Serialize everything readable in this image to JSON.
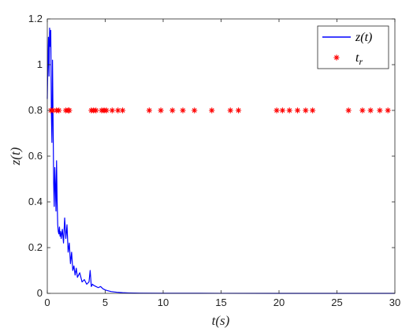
{
  "chart_data": {
    "type": "line",
    "title": "",
    "xlabel": "t(s)",
    "ylabel": "z(t)",
    "xlim": [
      0,
      30
    ],
    "ylim": [
      0,
      1.2
    ],
    "xticks": [
      0,
      5,
      10,
      15,
      20,
      25,
      30
    ],
    "yticks": [
      0,
      0.2,
      0.4,
      0.6,
      0.8,
      1,
      1.2
    ],
    "xtick_labels": [
      "0",
      "5",
      "10",
      "15",
      "20",
      "25",
      "30"
    ],
    "ytick_labels": [
      "0",
      "0.2",
      "0.4",
      "0.6",
      "0.8",
      "1",
      "1.2"
    ],
    "grid": false,
    "legend_position": "top-right",
    "series": [
      {
        "name": "z(t)",
        "kind": "line",
        "color": "#0000ff",
        "x": [
          0,
          0.05,
          0.1,
          0.15,
          0.2,
          0.25,
          0.3,
          0.35,
          0.4,
          0.45,
          0.5,
          0.55,
          0.6,
          0.65,
          0.7,
          0.75,
          0.8,
          0.85,
          0.9,
          0.95,
          1.0,
          1.05,
          1.1,
          1.15,
          1.2,
          1.3,
          1.4,
          1.5,
          1.6,
          1.7,
          1.8,
          1.9,
          2.0,
          2.1,
          2.2,
          2.3,
          2.4,
          2.5,
          2.6,
          2.8,
          3.0,
          3.2,
          3.4,
          3.6,
          3.7,
          3.8,
          3.9,
          4.0,
          4.2,
          4.4,
          4.6,
          4.8,
          5.0,
          5.2,
          5.5,
          6.0,
          6.5,
          7.0,
          8.0,
          10.0,
          15.0,
          20.0,
          25.0,
          30.0
        ],
        "y": [
          0.85,
          1.0,
          1.12,
          0.95,
          1.16,
          1.08,
          1.15,
          0.8,
          0.66,
          1.02,
          0.75,
          0.48,
          0.38,
          0.55,
          0.47,
          0.36,
          0.58,
          0.4,
          0.3,
          0.27,
          0.26,
          0.29,
          0.25,
          0.27,
          0.24,
          0.28,
          0.22,
          0.33,
          0.24,
          0.3,
          0.18,
          0.22,
          0.13,
          0.18,
          0.1,
          0.12,
          0.08,
          0.11,
          0.07,
          0.09,
          0.05,
          0.06,
          0.04,
          0.05,
          0.1,
          0.03,
          0.04,
          0.035,
          0.03,
          0.025,
          0.03,
          0.02,
          0.015,
          0.012,
          0.008,
          0.005,
          0.003,
          0.002,
          0.001,
          0.0005,
          0.0002,
          0.0001,
          0.0,
          0.0
        ]
      },
      {
        "name": "t_r",
        "kind": "scatter",
        "marker": "*",
        "color": "#ff0000",
        "x": [
          0.3,
          0.5,
          0.8,
          1.0,
          1.6,
          1.8,
          1.9,
          3.8,
          4.0,
          4.2,
          4.7,
          4.9,
          5.1,
          5.6,
          6.1,
          6.5,
          8.8,
          9.8,
          10.8,
          11.7,
          12.7,
          14.2,
          15.8,
          16.5,
          19.8,
          20.3,
          20.9,
          21.6,
          22.3,
          22.9,
          26.0,
          27.2,
          27.9,
          28.7,
          29.4
        ],
        "y": [
          0.8,
          0.8,
          0.8,
          0.8,
          0.8,
          0.8,
          0.8,
          0.8,
          0.8,
          0.8,
          0.8,
          0.8,
          0.8,
          0.8,
          0.8,
          0.8,
          0.8,
          0.8,
          0.8,
          0.8,
          0.8,
          0.8,
          0.8,
          0.8,
          0.8,
          0.8,
          0.8,
          0.8,
          0.8,
          0.8,
          0.8,
          0.8,
          0.8,
          0.8,
          0.8
        ]
      }
    ],
    "legend": {
      "entries": [
        {
          "label": "z(t)",
          "main": "z",
          "sub": "",
          "suffix": "(t)",
          "kind": "line",
          "color": "#0000ff"
        },
        {
          "label": "t_r",
          "main": "t",
          "sub": "r",
          "suffix": "",
          "kind": "scatter",
          "color": "#ff0000"
        }
      ]
    }
  }
}
